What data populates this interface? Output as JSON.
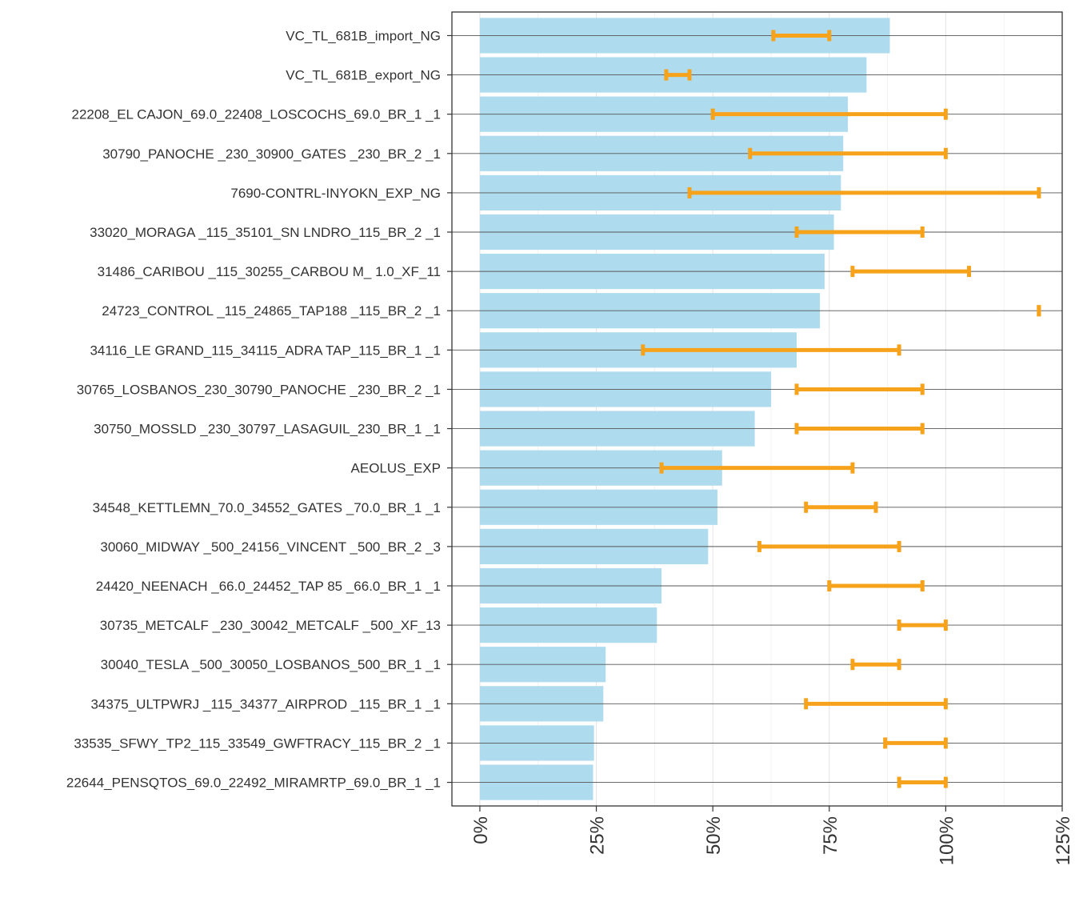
{
  "chart_data": {
    "type": "bar",
    "orientation": "horizontal",
    "title": "",
    "xlabel": "",
    "ylabel": "",
    "categories": [
      "VC_TL_681B_import_NG",
      "VC_TL_681B_export_NG",
      "22208_EL CAJON_69.0_22408_LOSCOCHS_69.0_BR_1 _1",
      "30790_PANOCHE _230_30900_GATES   _230_BR_2 _1",
      "7690-CONTRL-INYOKN_EXP_NG",
      "33020_MORAGA  _115_35101_SN LNDRO_115_BR_2 _1",
      "31486_CARIBOU _115_30255_CARBOU M_ 1.0_XF_11",
      "24723_CONTROL _115_24865_TAP188  _115_BR_2 _1",
      "34116_LE GRAND_115_34115_ADRA TAP_115_BR_1 _1",
      "30765_LOSBANOS_230_30790_PANOCHE _230_BR_2 _1",
      "30750_MOSSLD  _230_30797_LASAGUIL_230_BR_1 _1",
      "AEOLUS_EXP",
      "34548_KETTLEMN_70.0_34552_GATES   _70.0_BR_1 _1",
      "30060_MIDWAY  _500_24156_VINCENT _500_BR_2 _3",
      "24420_NEENACH _66.0_24452_TAP 85  _66.0_BR_1 _1",
      "30735_METCALF _230_30042_METCALF _500_XF_13",
      "30040_TESLA   _500_30050_LOSBANOS_500_BR_1 _1",
      "34375_ULTPWRJ _115_34377_AIRPROD _115_BR_1 _1",
      "33535_SFWY_TP2_115_33549_GWFTRACY_115_BR_2 _1",
      "22644_PENSQTOS_69.0_22492_MIRAMRTP_69.0_BR_1 _1"
    ],
    "values": [
      88,
      83,
      79,
      78,
      77.5,
      76,
      74,
      73,
      68,
      62.5,
      59,
      52,
      51,
      49,
      39,
      38,
      27,
      26.5,
      24.5,
      24.3
    ],
    "error_ranges": [
      [
        63,
        75
      ],
      [
        40,
        45
      ],
      [
        50,
        100
      ],
      [
        58,
        100
      ],
      [
        45,
        120
      ],
      [
        68,
        95
      ],
      [
        80,
        105
      ],
      [
        120,
        120
      ],
      [
        35,
        90
      ],
      [
        68,
        95
      ],
      [
        68,
        95
      ],
      [
        39,
        80
      ],
      [
        70,
        85
      ],
      [
        60,
        90
      ],
      [
        75,
        95
      ],
      [
        90,
        100
      ],
      [
        80,
        90
      ],
      [
        70,
        100
      ],
      [
        87,
        100
      ],
      [
        90,
        100
      ]
    ],
    "xlim": [
      -6,
      125
    ],
    "x_ticks": [
      0,
      25,
      50,
      75,
      100,
      125
    ],
    "x_tick_labels": [
      "0%",
      "25%",
      "50%",
      "75%",
      "100%",
      "125%"
    ],
    "grid": true,
    "legend": "none",
    "colors": {
      "bar": "#aedcee",
      "error_bar": "#f7a21b",
      "grid_major": "#e6e6e6",
      "row_line": "#555555",
      "axis": "#333333"
    }
  }
}
